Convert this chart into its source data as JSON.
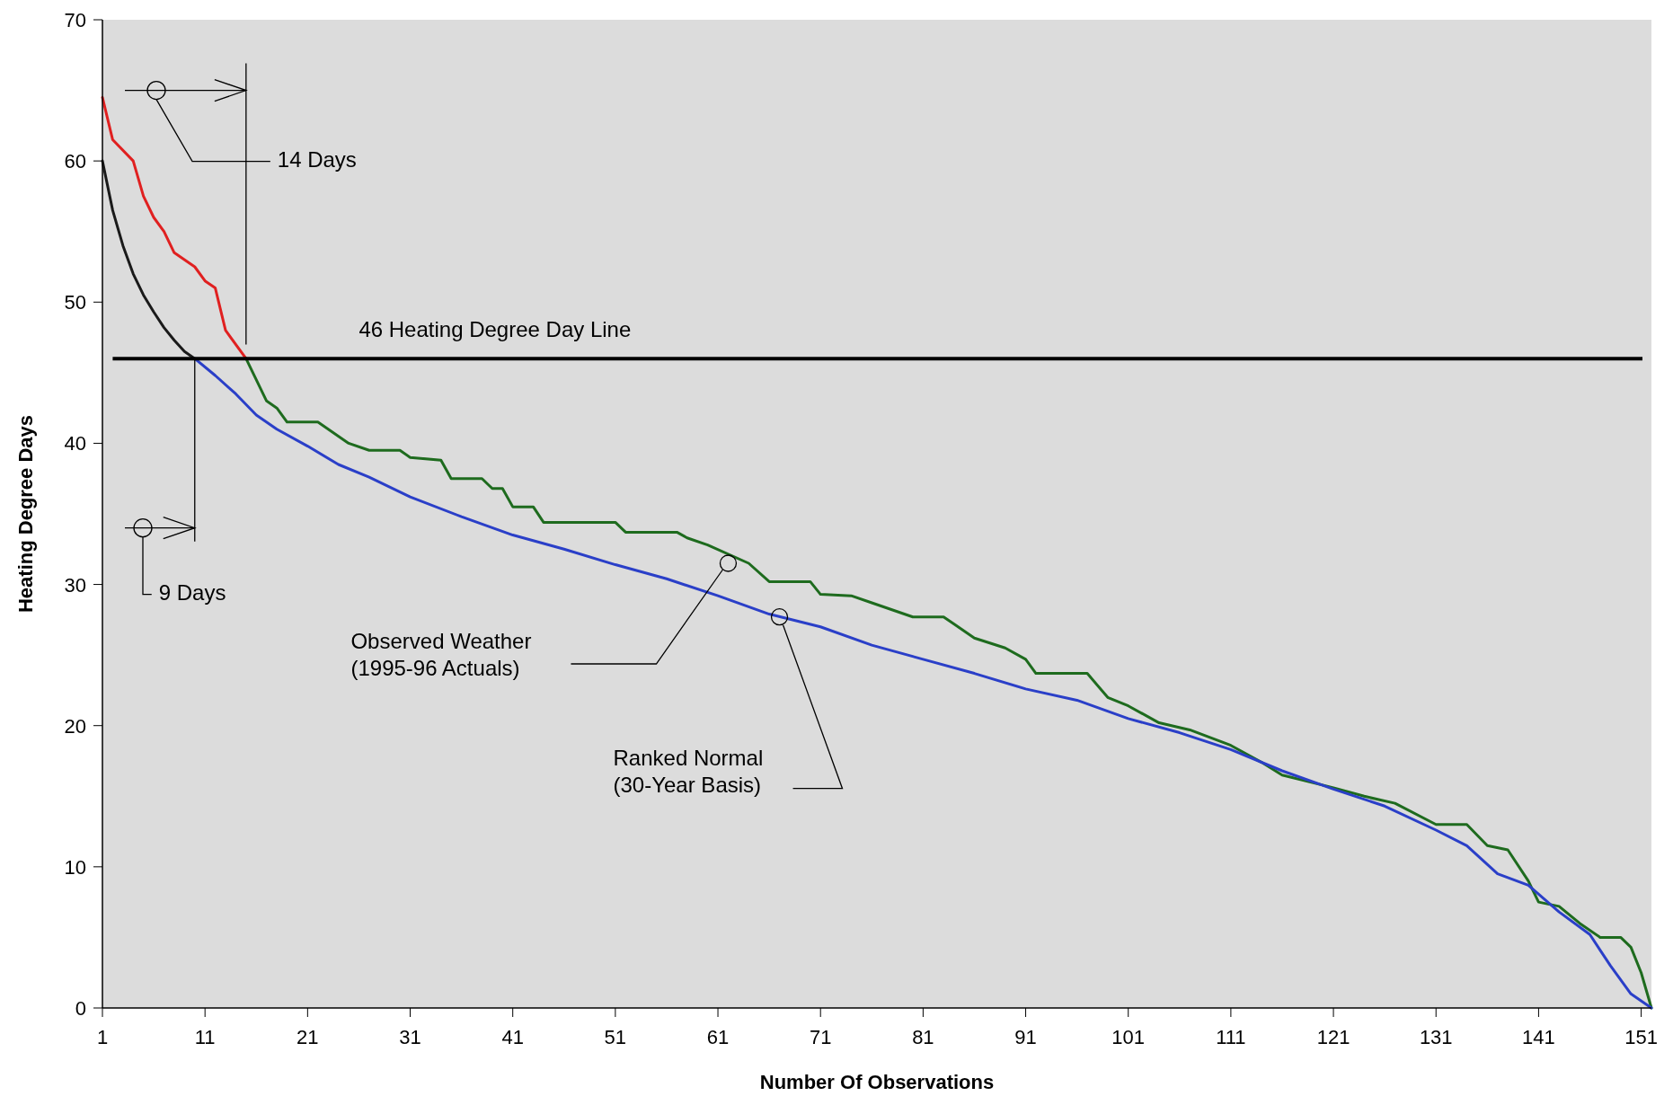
{
  "chart_data": {
    "type": "line",
    "xlabel": "Number Of Observations",
    "ylabel": "Heating Degree Days",
    "xlim": [
      1,
      152
    ],
    "xticks": [
      1,
      11,
      21,
      31,
      41,
      51,
      61,
      71,
      81,
      91,
      101,
      111,
      121,
      131,
      141,
      151
    ],
    "ylim": [
      0,
      70
    ],
    "yticks": [
      0,
      10,
      20,
      30,
      40,
      50,
      60,
      70
    ],
    "grid": false,
    "marker": "none",
    "line_style": "solid",
    "series": [
      {
        "color": "#e02020",
        "x": [
          1,
          2,
          4,
          5,
          6,
          7,
          8,
          10,
          11,
          12,
          13,
          15
        ],
        "values": [
          64.5,
          61.5,
          60,
          57.5,
          56,
          55,
          53.5,
          52.5,
          51.5,
          51,
          48,
          46
        ]
      },
      {
        "color": "#1e6b1e",
        "x": [
          15,
          17,
          18,
          19,
          22,
          25,
          27,
          30,
          31,
          34,
          35,
          38,
          39,
          40,
          41,
          43,
          44,
          51,
          52,
          57,
          58,
          60,
          64,
          66,
          70,
          71,
          74,
          76,
          80,
          83,
          84,
          86,
          89,
          91,
          92,
          97,
          99,
          101,
          104,
          107,
          111,
          114,
          116,
          121,
          124,
          127,
          131,
          134,
          136,
          138,
          140,
          141,
          143,
          145,
          147,
          149,
          150,
          151,
          152
        ],
        "values": [
          46,
          43,
          42.5,
          41.5,
          41.5,
          40,
          39.5,
          39.5,
          39,
          38.8,
          37.5,
          37.5,
          36.8,
          36.8,
          35.5,
          35.5,
          34.4,
          34.4,
          33.7,
          33.7,
          33.3,
          32.8,
          31.5,
          30.2,
          30.2,
          29.3,
          29.2,
          28.7,
          27.7,
          27.7,
          27.2,
          26.2,
          25.5,
          24.7,
          23.7,
          23.7,
          22,
          21.4,
          20.2,
          19.7,
          18.6,
          17.4,
          16.5,
          15.6,
          15,
          14.5,
          13,
          13,
          11.5,
          11.2,
          9,
          7.5,
          7.2,
          6,
          5,
          5,
          4.3,
          2.5,
          0
        ]
      },
      {
        "color": "#1a1a1a",
        "x": [
          1,
          2,
          3,
          4,
          5,
          6,
          7,
          8,
          9,
          10
        ],
        "values": [
          60,
          56.5,
          54,
          52,
          50.5,
          49.3,
          48.2,
          47.3,
          46.5,
          46
        ]
      },
      {
        "color": "#2a3fc8",
        "x": [
          10,
          12,
          14,
          16,
          18,
          21,
          24,
          27,
          31,
          36,
          41,
          46,
          51,
          56,
          61,
          66,
          71,
          76,
          81,
          86,
          91,
          96,
          101,
          106,
          111,
          116,
          121,
          126,
          131,
          134,
          137,
          140,
          143,
          146,
          148,
          150,
          152
        ],
        "values": [
          46,
          44.8,
          43.5,
          42,
          41,
          39.8,
          38.5,
          37.6,
          36.2,
          34.8,
          33.5,
          32.5,
          31.4,
          30.4,
          29.2,
          27.9,
          27,
          25.7,
          24.7,
          23.7,
          22.6,
          21.8,
          20.5,
          19.5,
          18.3,
          16.8,
          15.5,
          14.3,
          12.6,
          11.5,
          9.5,
          8.7,
          6.8,
          5.2,
          3,
          1,
          0
        ]
      }
    ],
    "ref_lines": [
      {
        "axis": "y",
        "value": 46,
        "label": "46 Heating Degree Day Line",
        "color": "#000000"
      }
    ],
    "annotations": [
      "14 Days",
      "9 Days",
      "Observed Weather\n(1995-96 Actuals)",
      "Ranked Normal\n(30-Year Basis)"
    ]
  }
}
